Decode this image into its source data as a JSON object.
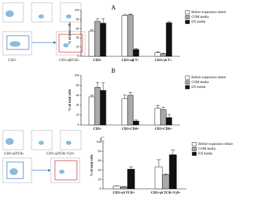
{
  "flow_labels": [
    "CD3+",
    "CD3+αβTCR+",
    "CD3+γδTCR+",
    "CD3+γδTCR+Vγ9+"
  ],
  "chart_data": [
    {
      "type": "bar",
      "label": "A",
      "ylabel": "% of total cells",
      "categories": [
        "CD3+",
        "CD3+αβ T+",
        "CD3+γδ T+"
      ],
      "series": [
        {
          "name": "Before expansion culture",
          "color": "#ffffff",
          "values": [
            55,
            89,
            8
          ],
          "errors": [
            3,
            2,
            2
          ]
        },
        {
          "name": "COM media",
          "color": "#aaaaaa",
          "values": [
            76,
            90,
            5
          ],
          "errors": [
            5,
            2,
            2
          ]
        },
        {
          "name": "EX media",
          "color": "#111111",
          "values": [
            72,
            15,
            73
          ],
          "errors": [
            10,
            2,
            2
          ]
        }
      ],
      "ylim": [
        0,
        100
      ],
      "yticks": [
        0,
        20,
        40,
        60,
        80,
        100
      ]
    },
    {
      "type": "bar",
      "label": "B",
      "ylabel": "% of total cells",
      "categories": [
        "CD3+",
        "CD3+CD4+",
        "CD3+CD8+"
      ],
      "series": [
        {
          "name": "Before expansion culture",
          "color": "#ffffff",
          "values": [
            57,
            53,
            34
          ],
          "errors": [
            3,
            8,
            6
          ]
        },
        {
          "name": "COM media",
          "color": "#aaaaaa",
          "values": [
            76,
            60,
            31
          ],
          "errors": [
            10,
            6,
            5
          ]
        },
        {
          "name": "EX media",
          "color": "#111111",
          "values": [
            70,
            8,
            15
          ],
          "errors": [
            15,
            2,
            6
          ]
        }
      ],
      "ylim": [
        0,
        100
      ],
      "yticks": [
        0,
        20,
        40,
        60,
        80,
        100
      ]
    },
    {
      "type": "bar",
      "label": "C",
      "ylabel": "% of total cells",
      "categories": [
        "CD3+γδ TCR+",
        "CD3+γδ TCR+Vγ9+"
      ],
      "series": [
        {
          "name": "Before expansion culture",
          "color": "#ffffff",
          "values": [
            6,
            47
          ],
          "errors": [
            0,
            15
          ]
        },
        {
          "name": "COM media",
          "color": "#aaaaaa",
          "values": [
            4,
            30
          ],
          "errors": [
            1,
            2
          ]
        },
        {
          "name": "EX media",
          "color": "#111111",
          "values": [
            42,
            73
          ],
          "errors": [
            5,
            10
          ]
        }
      ],
      "ylim": [
        0,
        100
      ],
      "yticks": [
        0,
        20,
        40,
        60,
        80,
        100
      ]
    }
  ]
}
